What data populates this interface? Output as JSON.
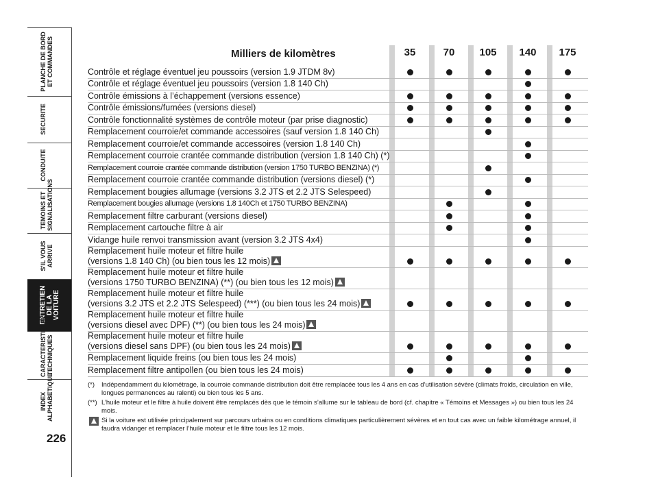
{
  "sidebar": {
    "tabs": [
      {
        "label": "PLANCHE DE BORD ET COMMANDES",
        "active": false
      },
      {
        "label": "SECURITE",
        "active": false
      },
      {
        "label": "CONDUITE",
        "active": false
      },
      {
        "label": "TEMOINS ET SIGNALISATIONS",
        "active": false
      },
      {
        "label": "S'IL VOUS ARRIVE",
        "active": false
      },
      {
        "label": "ENTRETIEN DE LA VOITURE",
        "active": true
      },
      {
        "label": "CARACTERISTIQUES TECHNIQUES",
        "active": false
      },
      {
        "label": "INDEX ALPHABETIQUE",
        "active": false
      }
    ],
    "page_number": "226"
  },
  "table": {
    "heading": "Milliers de kilomètres",
    "columns": [
      "35",
      "70",
      "105",
      "140",
      "175"
    ],
    "rows": [
      {
        "text": "Contrôle et réglage éventuel jeu poussoirs (version 1.9 JTDM 8v)",
        "marks": [
          1,
          1,
          1,
          1,
          1
        ]
      },
      {
        "text": "Contrôle et réglage éventuel jeu poussoirs (version 1.8 140 Ch)",
        "marks": [
          0,
          0,
          0,
          1,
          0
        ]
      },
      {
        "text": "Contrôle émissions à l’échappement (versions essence)",
        "marks": [
          1,
          1,
          1,
          1,
          1
        ]
      },
      {
        "text": "Contrôle émissions/fumées (versions diesel)",
        "marks": [
          1,
          1,
          1,
          1,
          1
        ]
      },
      {
        "text": "Contrôle fonctionnalité systèmes de contrôle moteur (par prise diagnostic)",
        "marks": [
          1,
          1,
          1,
          1,
          1
        ]
      },
      {
        "text": "Remplacement courroie/et commande accessoires (sauf version 1.8 140 Ch)",
        "marks": [
          0,
          0,
          1,
          0,
          0
        ]
      },
      {
        "text": "Remplacement courroie/et commande accessoires (version 1.8 140 Ch)",
        "marks": [
          0,
          0,
          0,
          1,
          0
        ]
      },
      {
        "text": "Remplacement courroie crantée commande distribution (version 1.8 140 Ch) (*)",
        "marks": [
          0,
          0,
          0,
          1,
          0
        ]
      },
      {
        "text": "Remplacement courroie crantée commande distribution (version 1750 TURBO BENZINA) (*)",
        "marks": [
          0,
          0,
          1,
          0,
          0
        ],
        "small": true
      },
      {
        "text": "Remplacement courroie crantée commande distribution (versions diesel) (*)",
        "marks": [
          0,
          0,
          0,
          1,
          0
        ]
      },
      {
        "text": "Remplacement bougies allumage (versions 3.2 JTS et 2.2 JTS Selespeed)",
        "marks": [
          0,
          0,
          1,
          0,
          0
        ]
      },
      {
        "text": "Remplacement bougies allumage (versions 1.8 140Ch et 1750 TURBO BENZINA)",
        "marks": [
          0,
          1,
          0,
          1,
          0
        ],
        "small": true
      },
      {
        "text": "Remplacement filtre carburant (versions diesel)",
        "marks": [
          0,
          1,
          0,
          1,
          0
        ]
      },
      {
        "text": "Remplacement cartouche filtre à air",
        "marks": [
          0,
          1,
          0,
          1,
          0
        ]
      },
      {
        "text": "Vidange huile renvoi transmission avant (version 3.2 JTS 4x4)",
        "marks": [
          0,
          0,
          0,
          1,
          0
        ]
      },
      {
        "text": "Remplacement huile moteur et filtre huile",
        "text2": "(versions 1.8 140 Ch) (ou bien tous les 12 mois)",
        "warn": true,
        "marks": [
          1,
          1,
          1,
          1,
          1
        ]
      },
      {
        "text": "Remplacement huile moteur et filtre huile",
        "text2": "(versions 1750 TURBO BENZINA) (**) (ou bien tous les 12 mois)",
        "warn": true,
        "marks": [
          0,
          0,
          0,
          0,
          0
        ]
      },
      {
        "text": "Remplacement huile moteur et filtre huile",
        "text2": "(versions 3.2 JTS et 2.2 JTS Selespeed) (***) (ou bien tous les 24 mois)",
        "warn": true,
        "marks": [
          1,
          1,
          1,
          1,
          1
        ]
      },
      {
        "text": "Remplacement huile moteur et filtre huile",
        "text2": "(versions diesel avec DPF) (**) (ou bien tous les 24 mois)",
        "warn": true,
        "marks": [
          0,
          0,
          0,
          0,
          0
        ]
      },
      {
        "text": "Remplacement huile moteur et filtre huile",
        "text2": "(versions diesel sans DPF) (ou bien tous les 24 mois)",
        "warn": true,
        "marks": [
          1,
          1,
          1,
          1,
          1
        ]
      },
      {
        "text": "Remplacement liquide freins (ou bien tous les 24 mois)",
        "marks": [
          0,
          1,
          0,
          1,
          0
        ]
      },
      {
        "text": "Remplacement filtre antipollen (ou bien tous les 24 mois)",
        "marks": [
          1,
          1,
          1,
          1,
          1
        ]
      }
    ]
  },
  "notes": [
    {
      "mark": "(*)",
      "text": "Indépendamment du kilométrage, la courroie commande distribution doit être remplacée tous les 4 ans en cas d’utilisation sévère (climats froids, circulation en ville, longues permanences au ralenti) ou bien tous les 5 ans."
    },
    {
      "mark": "(**)",
      "text": "L’huile moteur et le filtre à huile doivent être remplacés dès que le témoin s’allume sur le tableau de bord (cf. chapitre « Témoins et Messages ») ou bien tous les 24 mois."
    },
    {
      "mark": "warn",
      "text": "Si la voiture est utilisée principalement sur parcours urbains ou en conditions climatiques particulièrement sévères et en tout cas avec un faible kilométrage annuel, il faudra vidanger et remplacer l’huile moteur et le filtre tous les 12 mois."
    }
  ]
}
